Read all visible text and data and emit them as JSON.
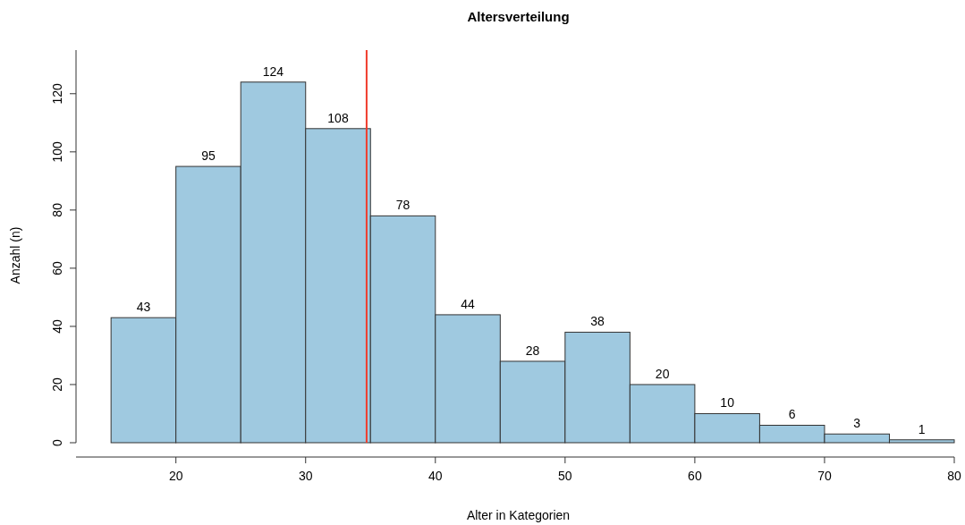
{
  "chart_data": {
    "type": "histogram",
    "title": "Altersverteilung",
    "xlabel": "Alter in Kategorien",
    "ylabel": "Anzahl (n)",
    "bins": [
      15,
      20,
      25,
      30,
      35,
      40,
      45,
      50,
      55,
      60,
      65,
      70,
      75,
      80
    ],
    "values": [
      43,
      95,
      124,
      108,
      78,
      44,
      28,
      38,
      20,
      10,
      6,
      3,
      1
    ],
    "color": "#9fc9e0",
    "data_labels": true,
    "xlim": [
      12.3,
      80
    ],
    "xticks": [
      20,
      30,
      40,
      50,
      60,
      70,
      80
    ],
    "ylim": [
      0,
      135
    ],
    "yticks": [
      0,
      20,
      40,
      60,
      80,
      100,
      120
    ],
    "ref_lines": [
      {
        "axis": "x",
        "value": 34.7,
        "color": "#f03c2c"
      }
    ],
    "grid": false
  }
}
